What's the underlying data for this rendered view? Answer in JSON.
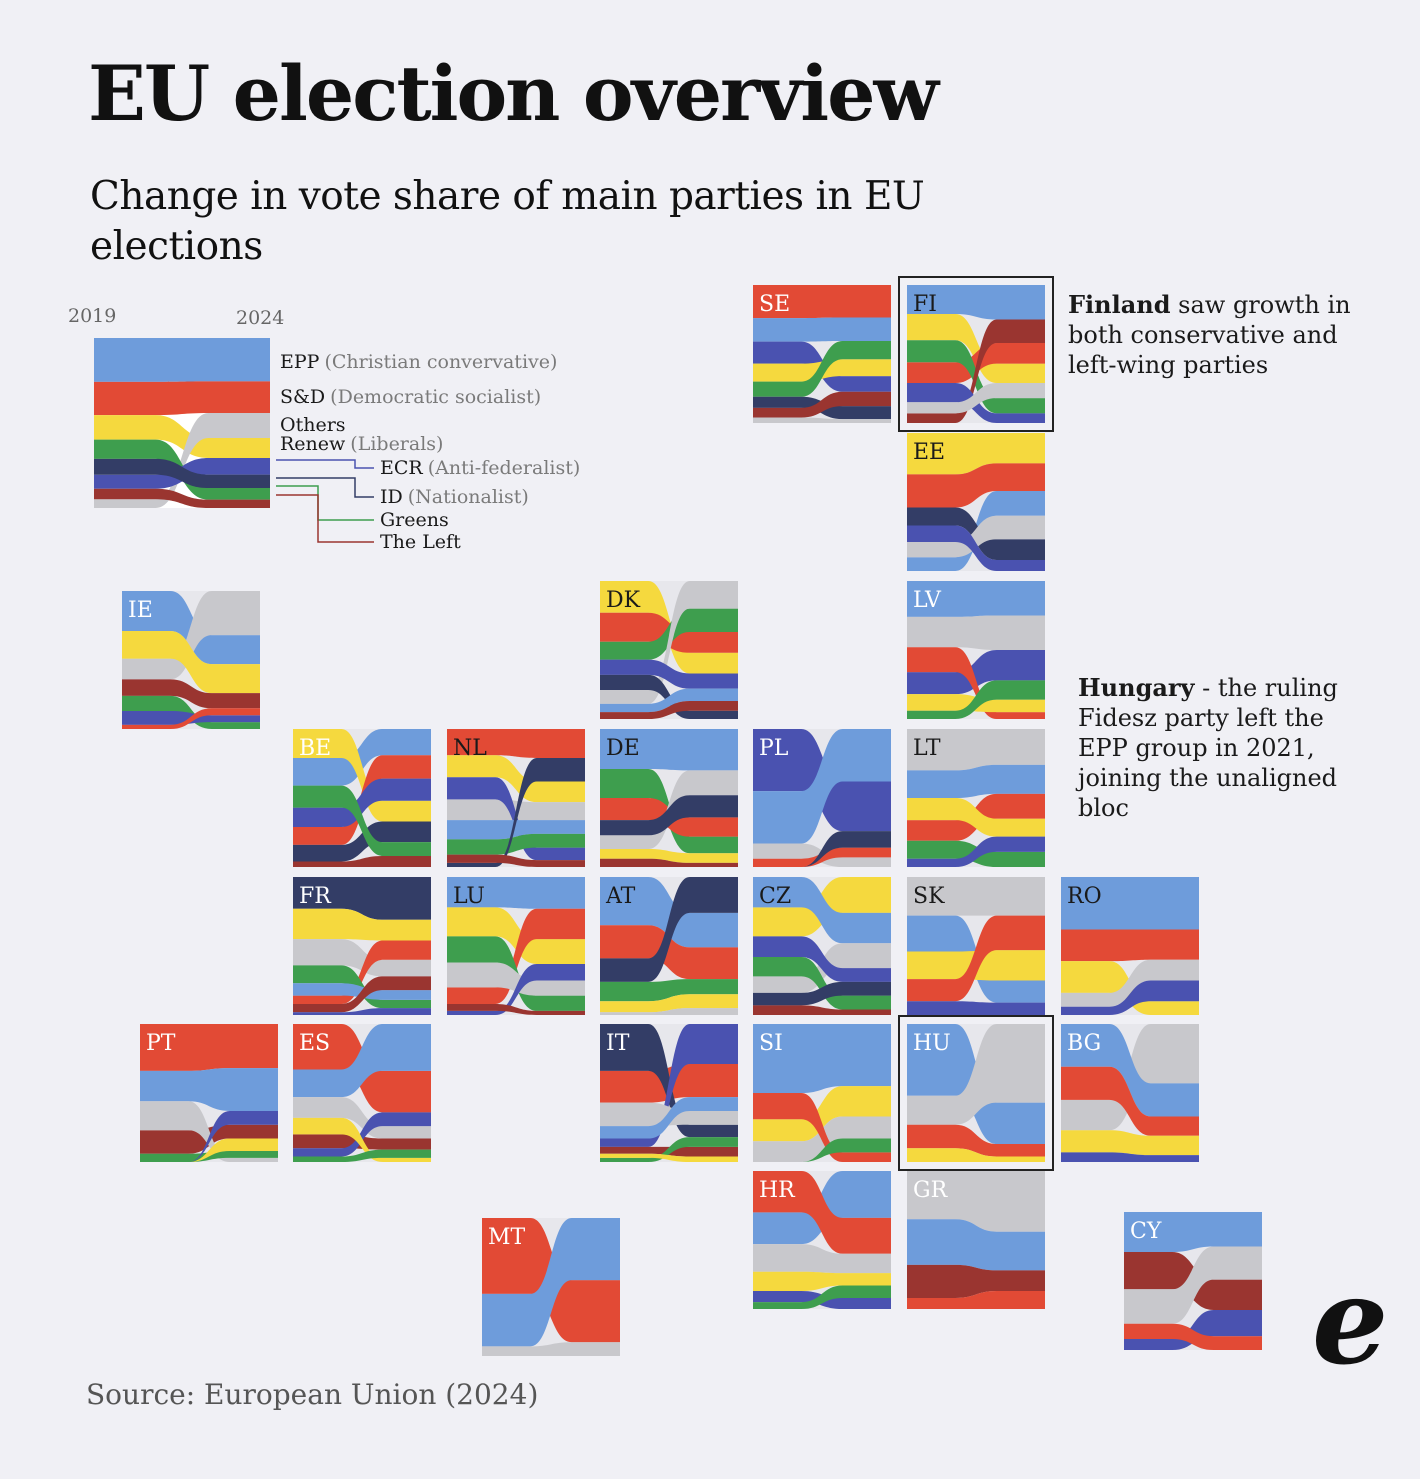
{
  "title": "EU election overview",
  "subtitle": "Change in vote share of main parties in EU elections",
  "source": "Source: European Union (2024)",
  "logo_text": "e",
  "annotations": {
    "finland": {
      "bold": "Finland",
      "rest": " saw growth in both conservative and left-wing parties"
    },
    "hungary": {
      "bold": "Hungary",
      "rest": " - the ruling Fidesz party left the EPP group in 2021, joining the unaligned bloc"
    }
  },
  "colors": {
    "EPP": "#6e9cdb",
    "SD": "#e24a35",
    "Others": "#c8c8cc",
    "Renew": "#f5d93e",
    "ECR": "#4a52b0",
    "ID": "#333d66",
    "Greens": "#3e9e4e",
    "Left": "#9a3530",
    "background": "#f0f0f5"
  },
  "chart_data": {
    "type": "area",
    "x": [
      "2019",
      "2024"
    ],
    "legend": {
      "year_start": "2019",
      "year_end": "2024",
      "items": [
        {
          "key": "EPP",
          "name": "EPP",
          "desc": "(Christian convervative)"
        },
        {
          "key": "SD",
          "name": "S&D",
          "desc": "(Democratic socialist)"
        },
        {
          "key": "Others",
          "name": "Others",
          "desc": ""
        },
        {
          "key": "Renew",
          "name": "Renew",
          "desc": "(Liberals)"
        },
        {
          "key": "ECR",
          "name": "ECR",
          "desc": "(Anti-federalist)"
        },
        {
          "key": "ID",
          "name": "ID",
          "desc": "(Nationalist)"
        },
        {
          "key": "Greens",
          "name": "Greens",
          "desc": ""
        },
        {
          "key": "Left",
          "name": "The Left",
          "desc": ""
        }
      ],
      "shares": {
        "EPP": [
          25,
          26
        ],
        "SD": [
          19,
          19
        ],
        "Renew": [
          14,
          12
        ],
        "Others": [
          5,
          15
        ],
        "Greens": [
          11,
          7
        ],
        "ECR": [
          8,
          10
        ],
        "ID": [
          9,
          8
        ],
        "Left": [
          6,
          5
        ]
      }
    },
    "countries": [
      {
        "code": "SE",
        "label_dark": false,
        "shares": {
          "EPP": [
            17,
            18
          ],
          "SD": [
            24,
            25
          ],
          "Renew": [
            13,
            13
          ],
          "Greens": [
            11,
            14
          ],
          "ECR": [
            16,
            12
          ],
          "ID": [
            8,
            10
          ],
          "Left": [
            7,
            11
          ],
          "Others": [
            4,
            3
          ]
        }
      },
      {
        "code": "FI",
        "label_dark": true,
        "highlight": true,
        "shares": {
          "EPP": [
            21,
            25
          ],
          "SD": [
            15,
            15
          ],
          "Renew": [
            19,
            14
          ],
          "Greens": [
            16,
            11
          ],
          "ECR": [
            14,
            7
          ],
          "Left": [
            7,
            17
          ],
          "Others": [
            8,
            11
          ]
        }
      },
      {
        "code": "EE",
        "label_dark": true,
        "shares": {
          "Renew": [
            30,
            22
          ],
          "SD": [
            24,
            20
          ],
          "EPP": [
            10,
            18
          ],
          "ECR": [
            12,
            8
          ],
          "ID": [
            13,
            15
          ],
          "Others": [
            11,
            17
          ]
        }
      },
      {
        "code": "LV",
        "label_dark": false,
        "shares": {
          "EPP": [
            26,
            25
          ],
          "SD": [
            18,
            5
          ],
          "ECR": [
            16,
            22
          ],
          "Greens": [
            6,
            14
          ],
          "Renew": [
            12,
            9
          ],
          "Others": [
            22,
            25
          ]
        }
      },
      {
        "code": "LT",
        "label_dark": true,
        "shares": {
          "EPP": [
            20,
            21
          ],
          "SD": [
            15,
            18
          ],
          "Renew": [
            16,
            13
          ],
          "Greens": [
            13,
            11
          ],
          "ECR": [
            6,
            11
          ],
          "Others": [
            30,
            26
          ]
        }
      },
      {
        "code": "IE",
        "label_dark": false,
        "shares": {
          "Left": [
            12,
            11
          ],
          "EPP": [
            29,
            21
          ],
          "Renew": [
            20,
            21
          ],
          "Greens": [
            11,
            5
          ],
          "Others": [
            15,
            32
          ],
          "SD": [
            3,
            5
          ],
          "ECR": [
            10,
            5
          ]
        }
      },
      {
        "code": "DK",
        "label_dark": true,
        "shares": {
          "Renew": [
            23,
            15
          ],
          "SD": [
            21,
            15
          ],
          "Greens": [
            13,
            17
          ],
          "EPP": [
            6,
            9
          ],
          "Left": [
            5,
            7
          ],
          "ECR": [
            11,
            11
          ],
          "ID": [
            11,
            6
          ],
          "Others": [
            10,
            20
          ]
        }
      },
      {
        "code": "BE",
        "label_dark": false,
        "shares": {
          "EPP": [
            20,
            19
          ],
          "SD": [
            13,
            17
          ],
          "Renew": [
            21,
            15
          ],
          "Greens": [
            16,
            10
          ],
          "ECR": [
            14,
            16
          ],
          "ID": [
            12,
            15
          ],
          "Left": [
            4,
            8
          ]
        }
      },
      {
        "code": "NL",
        "label_dark": true,
        "shares": {
          "Renew": [
            16,
            15
          ],
          "SD": [
            19,
            21
          ],
          "EPP": [
            14,
            10
          ],
          "Greens": [
            11,
            10
          ],
          "ECR": [
            16,
            9
          ],
          "ID": [
            3,
            17
          ],
          "Left": [
            6,
            5
          ],
          "Others": [
            15,
            13
          ]
        }
      },
      {
        "code": "DE",
        "label_dark": true,
        "shares": {
          "EPP": [
            29,
            30
          ],
          "SD": [
            16,
            14
          ],
          "Greens": [
            21,
            12
          ],
          "ID": [
            11,
            16
          ],
          "Renew": [
            7,
            7
          ],
          "Left": [
            6,
            3
          ],
          "Others": [
            10,
            18
          ]
        }
      },
      {
        "code": "PL",
        "label_dark": false,
        "shares": {
          "EPP": [
            38,
            38
          ],
          "ECR": [
            45,
            36
          ],
          "SD": [
            6,
            7
          ],
          "Renew": [
            0,
            0
          ],
          "ID": [
            0,
            12
          ],
          "Others": [
            11,
            7
          ]
        }
      },
      {
        "code": "FR",
        "label_dark": false,
        "shares": {
          "ID": [
            23,
            31
          ],
          "Renew": [
            22,
            15
          ],
          "EPP": [
            9,
            7
          ],
          "Greens": [
            13,
            6
          ],
          "SD": [
            6,
            14
          ],
          "Left": [
            6,
            10
          ],
          "ECR": [
            2,
            5
          ],
          "Others": [
            19,
            12
          ]
        }
      },
      {
        "code": "LU",
        "label_dark": true,
        "shares": {
          "EPP": [
            22,
            23
          ],
          "Renew": [
            21,
            18
          ],
          "Greens": [
            19,
            11
          ],
          "SD": [
            12,
            22
          ],
          "ECR": [
            3,
            12
          ],
          "Left": [
            5,
            3
          ],
          "Others": [
            18,
            11
          ]
        }
      },
      {
        "code": "AT",
        "label_dark": true,
        "shares": {
          "EPP": [
            35,
            25
          ],
          "SD": [
            24,
            23
          ],
          "ID": [
            17,
            26
          ],
          "Greens": [
            14,
            11
          ],
          "Renew": [
            8,
            10
          ],
          "Others": [
            2,
            5
          ]
        }
      },
      {
        "code": "CZ",
        "label_dark": true,
        "shares": {
          "Renew": [
            21,
            26
          ],
          "EPP": [
            22,
            22
          ],
          "ECR": [
            15,
            10
          ],
          "ID": [
            9,
            10
          ],
          "Greens": [
            14,
            10
          ],
          "Left": [
            7,
            4
          ],
          "Others": [
            12,
            18
          ]
        }
      },
      {
        "code": "SK",
        "label_dark": true,
        "shares": {
          "EPP": [
            26,
            16
          ],
          "SD": [
            16,
            25
          ],
          "Renew": [
            20,
            22
          ],
          "ECR": [
            10,
            9
          ],
          "Others": [
            28,
            28
          ]
        }
      },
      {
        "code": "RO",
        "label_dark": true,
        "shares": {
          "EPP": [
            38,
            38
          ],
          "SD": [
            23,
            22
          ],
          "Renew": [
            23,
            10
          ],
          "Others": [
            10,
            15
          ],
          "ECR": [
            6,
            15
          ]
        }
      },
      {
        "code": "PT",
        "label_dark": false,
        "shares": {
          "SD": [
            34,
            32
          ],
          "EPP": [
            22,
            31
          ],
          "Left": [
            17,
            10
          ],
          "Renew": [
            0,
            9
          ],
          "ECR": [
            0,
            10
          ],
          "Greens": [
            6,
            5
          ],
          "Others": [
            21,
            3
          ]
        }
      },
      {
        "code": "ES",
        "label_dark": false,
        "shares": {
          "SD": [
            33,
            30
          ],
          "EPP": [
            20,
            34
          ],
          "Renew": [
            12,
            3
          ],
          "ECR": [
            6,
            10
          ],
          "Left": [
            10,
            8
          ],
          "Greens": [
            4,
            6
          ],
          "Others": [
            15,
            9
          ]
        }
      },
      {
        "code": "IT",
        "label_dark": false,
        "shares": {
          "ID": [
            34,
            9
          ],
          "SD": [
            23,
            24
          ],
          "ECR": [
            6,
            29
          ],
          "EPP": [
            9,
            10
          ],
          "Others": [
            17,
            10
          ],
          "Renew": [
            3,
            4
          ],
          "Greens": [
            3,
            7
          ],
          "Left": [
            5,
            7
          ]
        }
      },
      {
        "code": "SI",
        "label_dark": false,
        "shares": {
          "EPP": [
            50,
            45
          ],
          "Renew": [
            16,
            22
          ],
          "SD": [
            19,
            7
          ],
          "Greens": [
            0,
            10
          ],
          "Others": [
            15,
            16
          ]
        }
      },
      {
        "code": "HU",
        "label_dark": false,
        "highlight": true,
        "shares": {
          "EPP": [
            52,
            30
          ],
          "SD": [
            17,
            9
          ],
          "Renew": [
            10,
            4
          ],
          "Others": [
            21,
            57
          ]
        }
      },
      {
        "code": "BG",
        "label_dark": false,
        "shares": {
          "EPP": [
            31,
            24
          ],
          "SD": [
            24,
            14
          ],
          "Renew": [
            16,
            14
          ],
          "ECR": [
            7,
            5
          ],
          "Others": [
            22,
            43
          ]
        }
      },
      {
        "code": "HR",
        "label_dark": false,
        "shares": {
          "EPP": [
            23,
            34
          ],
          "SD": [
            30,
            26
          ],
          "Others": [
            20,
            14
          ],
          "Renew": [
            14,
            9
          ],
          "ECR": [
            8,
            8
          ],
          "Greens": [
            5,
            9
          ]
        }
      },
      {
        "code": "GR",
        "label_dark": false,
        "shares": {
          "EPP": [
            33,
            28
          ],
          "Left": [
            24,
            15
          ],
          "SD": [
            8,
            13
          ],
          "Others": [
            35,
            44
          ]
        }
      },
      {
        "code": "MT",
        "label_dark": false,
        "shares": {
          "SD": [
            55,
            45
          ],
          "EPP": [
            38,
            45
          ],
          "Others": [
            7,
            10
          ]
        }
      },
      {
        "code": "CY",
        "label_dark": false,
        "shares": {
          "EPP": [
            29,
            25
          ],
          "Left": [
            27,
            22
          ],
          "SD": [
            11,
            10
          ],
          "ECR": [
            8,
            19
          ],
          "Others": [
            25,
            24
          ]
        }
      }
    ]
  }
}
